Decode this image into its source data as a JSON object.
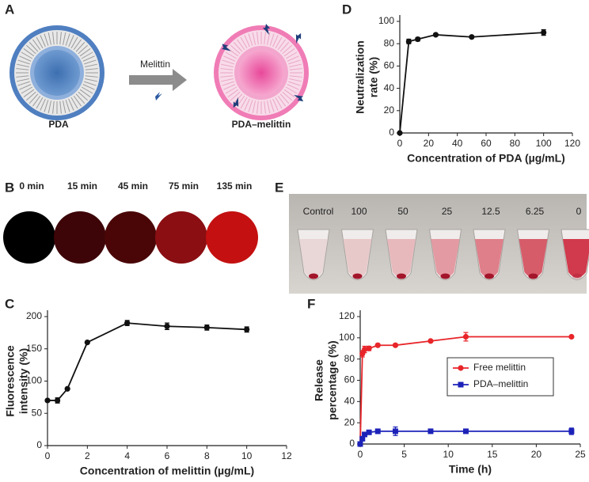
{
  "panels": {
    "A": {
      "label": "A",
      "left_label": "PDA",
      "arrow_label": "Melittin",
      "right_label": "PDA–melittin"
    },
    "B": {
      "label": "B",
      "times": [
        "0 min",
        "15 min",
        "45 min",
        "75 min",
        "135 min"
      ]
    },
    "E": {
      "label": "E",
      "tubes": [
        "Control",
        "100",
        "50",
        "25",
        "12.5",
        "6.25",
        "0"
      ]
    }
  },
  "chart_data": [
    {
      "type": "line",
      "panel_label": "D",
      "ylabel": [
        "Neutralization",
        "rate (%)"
      ],
      "xlabel": "Concentration of PDA (µg/mL)",
      "x": [
        0,
        6.25,
        12.5,
        25,
        50,
        100
      ],
      "values": [
        0,
        82,
        84,
        88,
        86,
        90
      ],
      "errors": [
        0,
        2,
        1.5,
        1,
        1,
        2.5
      ],
      "color": "#111111",
      "marker": "circle",
      "xlim": [
        0,
        120
      ],
      "xticks": [
        0,
        20,
        40,
        60,
        80,
        100,
        120
      ],
      "ylim": [
        0,
        100
      ],
      "yticks": [
        0,
        20,
        40,
        60,
        80,
        100
      ]
    },
    {
      "type": "line",
      "panel_label": "C",
      "ylabel": [
        "Fluorescence",
        "intensity (%)"
      ],
      "xlabel": "Concentration of melittin (µg/mL)",
      "x": [
        0,
        0.5,
        1,
        2,
        4,
        6,
        8,
        10
      ],
      "values": [
        70,
        70,
        88,
        160,
        190,
        185,
        183,
        180
      ],
      "errors": [
        0,
        4,
        0,
        0,
        4,
        5,
        4,
        4
      ],
      "color": "#111111",
      "marker": "circle",
      "xlim": [
        0,
        12
      ],
      "xticks": [
        0,
        2,
        4,
        6,
        8,
        10,
        12
      ],
      "ylim": [
        0,
        200
      ],
      "yticks": [
        0,
        50,
        100,
        150,
        200
      ]
    },
    {
      "type": "line",
      "panel_label": "F",
      "ylabel": [
        "Release",
        "percentage (%)"
      ],
      "xlabel": "Time (h)",
      "x": [
        0,
        0.25,
        0.5,
        1,
        2,
        4,
        8,
        12,
        24
      ],
      "series": [
        {
          "name": "Free melittin",
          "color": "#e8252a",
          "marker": "circle",
          "values": [
            0,
            85,
            89,
            90,
            93,
            93,
            97,
            101,
            101
          ],
          "errors": [
            0,
            3,
            3,
            2,
            1,
            1,
            1,
            4,
            1
          ]
        },
        {
          "name": "PDA–melittin",
          "color": "#1c22b8",
          "marker": "square",
          "values": [
            0,
            5,
            9,
            11,
            12,
            12,
            12,
            12,
            12
          ],
          "errors": [
            0,
            1,
            1,
            1,
            2,
            4,
            1,
            1,
            3
          ]
        }
      ],
      "legend": "right",
      "xlim": [
        0,
        25
      ],
      "xticks": [
        0,
        5,
        10,
        15,
        20,
        25
      ],
      "ylim": [
        0,
        120
      ],
      "yticks": [
        0,
        20,
        40,
        60,
        80,
        100,
        120
      ]
    }
  ]
}
